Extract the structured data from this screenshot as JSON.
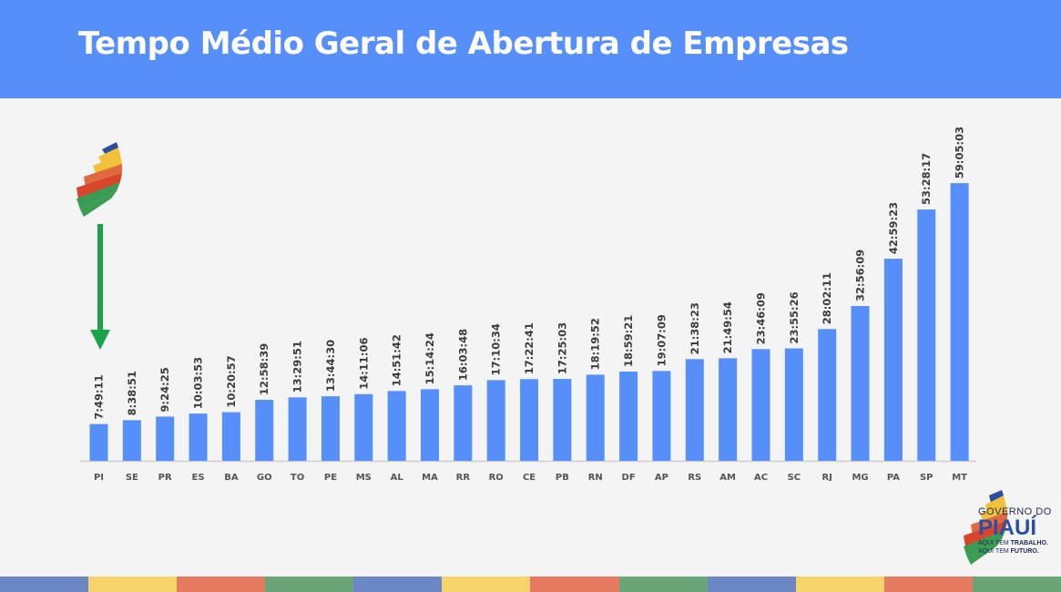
{
  "header": {
    "title": "Tempo Médio Geral de Abertura de Empresas"
  },
  "colors": {
    "header_bg": "#568ffa",
    "bar": "#568ffa",
    "arrow": "#19a34a",
    "stripes": [
      "#6b87c4",
      "#f6d36b",
      "#e67b62",
      "#6aa577",
      "#6b87c4",
      "#f6d36b",
      "#e67b62",
      "#6aa577",
      "#6b87c4",
      "#f6d36b",
      "#e67b62",
      "#6aa577"
    ]
  },
  "brand": {
    "line1": "GOVERNO DO",
    "line2": "PIAUÍ",
    "tag1_a": "AQUI TEM ",
    "tag1_b": "TRABALHO.",
    "tag2_a": "AQUI TEM ",
    "tag2_b": "FUTURO."
  },
  "icons": {
    "left_logo": "piaui-map-icon",
    "arrow": "arrow-down-icon",
    "brand_logo": "piaui-map-icon"
  },
  "chart_data": {
    "type": "bar",
    "title": "Tempo Médio Geral de Abertura de Empresas",
    "categories": [
      "PI",
      "SE",
      "PR",
      "ES",
      "BA",
      "GO",
      "TO",
      "PE",
      "MS",
      "AL",
      "MA",
      "RR",
      "RO",
      "CE",
      "PB",
      "RN",
      "DF",
      "AP",
      "RS",
      "AM",
      "AC",
      "SC",
      "RJ",
      "MG",
      "PA",
      "SP",
      "MT"
    ],
    "labels": [
      "7:49:11",
      "8:38:51",
      "9:24:25",
      "10:03:53",
      "10:20:57",
      "12:58:39",
      "13:29:51",
      "13:44:30",
      "14:11:06",
      "14:51:42",
      "15:14:24",
      "16:03:48",
      "17:10:34",
      "17:22:41",
      "17:25:03",
      "18:19:52",
      "18:59:21",
      "19:07:09",
      "21:38:23",
      "21:49:54",
      "23:46:09",
      "23:55:26",
      "28:02:11",
      "32:56:09",
      "42:59:23",
      "53:28:17",
      "59:05:03"
    ],
    "values_hours": [
      7.82,
      8.65,
      9.41,
      10.06,
      10.35,
      12.98,
      13.5,
      13.74,
      14.19,
      14.86,
      15.24,
      16.06,
      17.18,
      17.38,
      17.42,
      18.33,
      18.99,
      19.12,
      21.64,
      21.83,
      23.77,
      23.92,
      28.04,
      32.94,
      42.99,
      53.47,
      59.08
    ],
    "ylim": [
      0,
      62
    ],
    "legend": "none",
    "grid": false
  }
}
